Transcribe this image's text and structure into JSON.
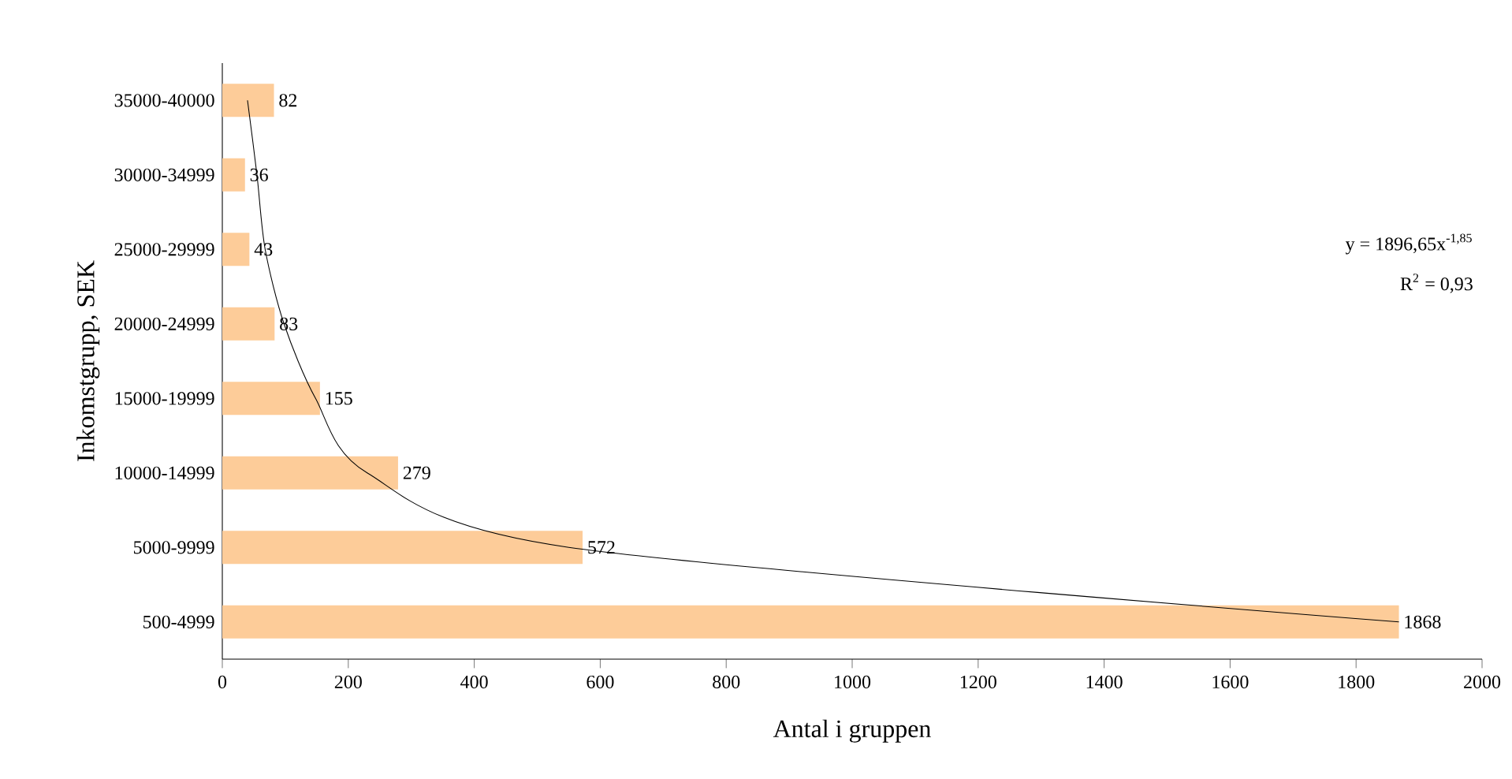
{
  "chart_data": {
    "type": "bar",
    "orientation": "horizontal",
    "xlabel": "Antal i gruppen",
    "ylabel": "Inkomstgrupp, SEK",
    "categories": [
      "35000-40000",
      "30000-34999",
      "25000-29999",
      "20000-24999",
      "15000-19999",
      "10000-14999",
      "5000-9999",
      "500-4999"
    ],
    "series": [
      {
        "color": "#fdcc99",
        "values": [
          82,
          36,
          43,
          83,
          155,
          279,
          572,
          1868
        ],
        "value_labels": [
          "82",
          "36",
          "43",
          "83",
          "155",
          "279",
          "572",
          "1868"
        ]
      },
      {
        "type": "line",
        "color": "#000000",
        "values": [
          40,
          55,
          68,
          98,
          148,
          230,
          550,
          1868
        ]
      }
    ],
    "xlim": [
      0,
      2000
    ],
    "xticks": [
      0,
      200,
      400,
      600,
      800,
      1000,
      1200,
      1400,
      1600,
      1800,
      2000
    ],
    "annotations": [
      "y = 1896,65x$^{-1,85}$",
      "R$^{2}$ = 0,93"
    ]
  }
}
